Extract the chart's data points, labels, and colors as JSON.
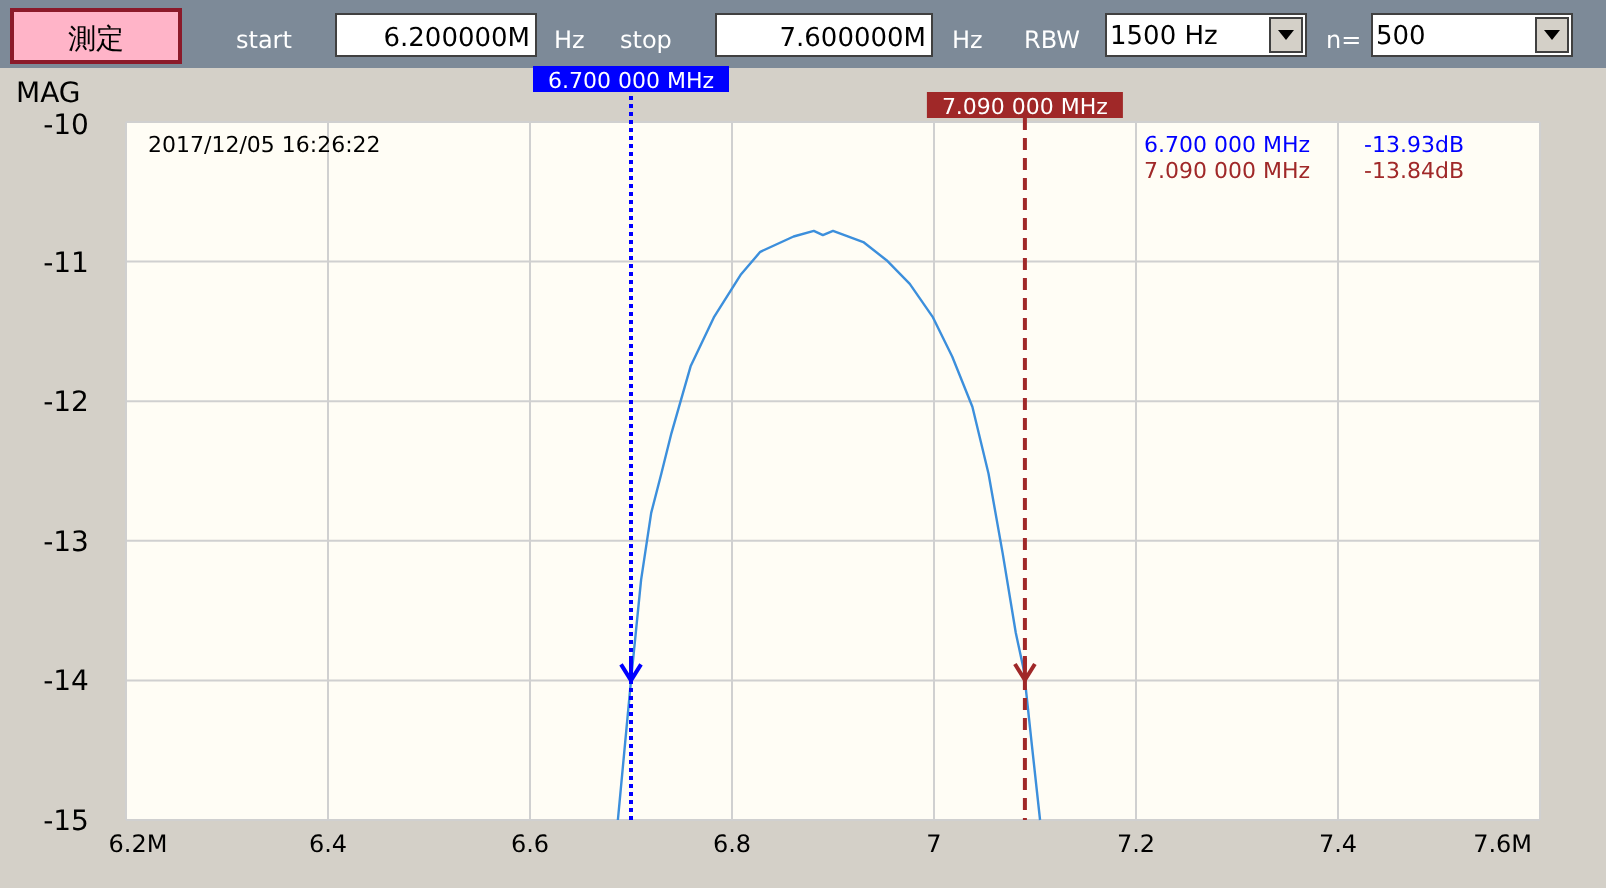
{
  "chart_data": {
    "type": "line",
    "ylabel": "MAG",
    "x": [
      6.687,
      6.7,
      6.71,
      6.72,
      6.73,
      6.74,
      6.759,
      6.782,
      6.809,
      6.828,
      6.861,
      6.881,
      6.89,
      6.9,
      6.93,
      6.953,
      6.976,
      6.999,
      7.018,
      7.038,
      7.054,
      7.068,
      7.081,
      7.089,
      7.097,
      7.105
    ],
    "series": [
      {
        "color": "#3c8fdc",
        "values": [
          -15.0,
          -14.0,
          -13.28,
          -12.8,
          -12.52,
          -12.23,
          -11.75,
          -11.4,
          -11.09,
          -10.93,
          -10.82,
          -10.78,
          -10.81,
          -10.78,
          -10.86,
          -10.99,
          -11.16,
          -11.4,
          -11.68,
          -12.04,
          -12.52,
          -13.09,
          -13.66,
          -13.93,
          -14.47,
          -15.0
        ]
      }
    ],
    "xlim": [
      6.2,
      7.6
    ],
    "ylim": [
      -15,
      -10
    ],
    "xticks": [
      {
        "value": 6.2,
        "label": "6.2M"
      },
      6.4,
      6.6,
      6.8,
      7,
      7.2,
      7.4,
      {
        "value": 7.6,
        "label": "7.6M"
      }
    ],
    "yticks": [
      -10,
      -11,
      -12,
      -13,
      -14,
      -15
    ],
    "grid": true,
    "marker": "none",
    "line_style": "solid",
    "ref_lines": [
      {
        "axis": "x",
        "value": 6.7,
        "label": "6.700 000 MHz",
        "color": "#0000ff",
        "line_style": "dotted"
      },
      {
        "axis": "x",
        "value": 7.09,
        "label": "7.090 000 MHz",
        "color": "#a02828",
        "line_style": "dashed"
      }
    ],
    "annotations": [
      "測定",
      "start",
      "6.200000M",
      "Hz",
      "stop",
      "7.600000M",
      "Hz",
      "RBW",
      "1500 Hz",
      "n=",
      "500",
      "2017/12/05 16:26:22",
      "6.700 000 MHz",
      "-13.93dB",
      "7.090 000 MHz",
      "-13.84dB"
    ]
  }
}
